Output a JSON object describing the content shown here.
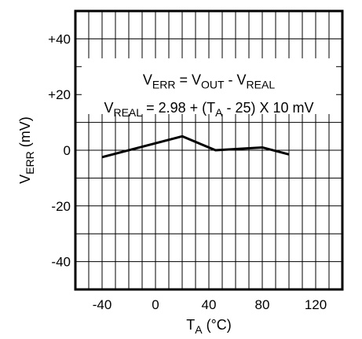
{
  "chart_data": {
    "type": "line",
    "title": "",
    "xlabel": {
      "main": "T",
      "sub": "A",
      "rest": " (°C)"
    },
    "ylabel": {
      "main": "V",
      "sub": "ERR",
      "rest": " (mV)"
    },
    "xlim": [
      -60,
      140
    ],
    "ylim": [
      -50,
      50
    ],
    "x_ticks": [
      -40,
      0,
      40,
      80,
      120
    ],
    "x_tick_labels": [
      "-40",
      "0",
      "40",
      "80",
      "120"
    ],
    "y_ticks": [
      40,
      20,
      0,
      -20,
      -40
    ],
    "y_tick_labels": [
      "+40",
      "+20",
      "0",
      "-20",
      "-40"
    ],
    "grid": true,
    "legend": "none",
    "annotations": [
      {
        "parts": [
          {
            "t": "V",
            "sub": false
          },
          {
            "t": "ERR",
            "sub": true
          },
          {
            "t": " = V",
            "sub": false
          },
          {
            "t": "OUT",
            "sub": true
          },
          {
            "t": " - V",
            "sub": false
          },
          {
            "t": "REAL",
            "sub": true
          }
        ]
      },
      {
        "parts": [
          {
            "t": "V",
            "sub": false
          },
          {
            "t": "REAL",
            "sub": true
          },
          {
            "t": " = 2.98 + (T",
            "sub": false
          },
          {
            "t": "A",
            "sub": true
          },
          {
            "t": " - 25) X 10 mV",
            "sub": false
          }
        ]
      }
    ],
    "series": [
      {
        "x": [
          -40,
          20,
          45,
          80,
          100
        ],
        "y": [
          -2.5,
          5,
          0,
          1,
          -1.5
        ]
      }
    ],
    "colors": {
      "line": "#000000",
      "grid": "#000000",
      "frame": "#000000",
      "background": "#ffffff"
    }
  }
}
